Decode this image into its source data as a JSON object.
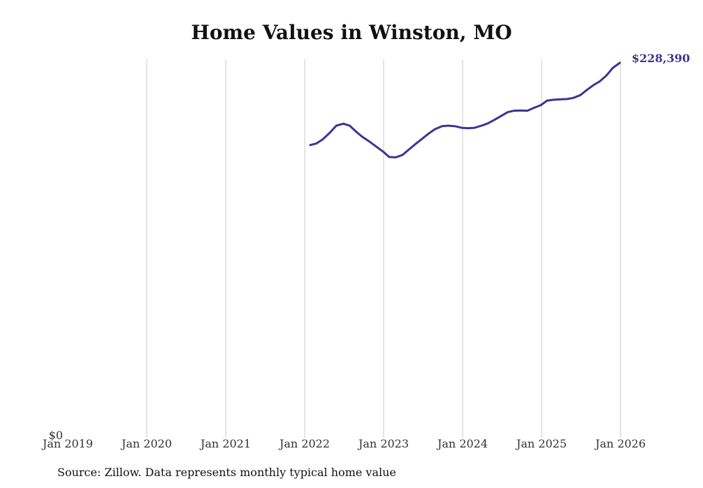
{
  "chart_data": {
    "type": "line",
    "title": "Home Values in Winston, MO",
    "xlabel": "",
    "ylabel": "",
    "x_tick_labels": [
      "Jan 2019",
      "Jan 2020",
      "Jan 2021",
      "Jan 2022",
      "Jan 2023",
      "Jan 2024",
      "Jan 2025",
      "Jan 2026"
    ],
    "y_tick_labels": [
      "$0"
    ],
    "xlim": [
      2019.0,
      2026.0
    ],
    "ylim": [
      0,
      228390
    ],
    "grid": "vertical",
    "series": [
      {
        "name": "Typical home value",
        "color": "#3b3592",
        "x": [
          2022.07,
          2022.15,
          2022.23,
          2022.32,
          2022.4,
          2022.49,
          2022.57,
          2022.65,
          2022.73,
          2022.82,
          2022.9,
          2022.99,
          2023.07,
          2023.15,
          2023.24,
          2023.32,
          2023.4,
          2023.49,
          2023.57,
          2023.65,
          2023.74,
          2023.82,
          2023.9,
          2023.99,
          2024.07,
          2024.15,
          2024.24,
          2024.32,
          2024.4,
          2024.49,
          2024.57,
          2024.65,
          2024.74,
          2024.82,
          2024.9,
          2024.99,
          2025.07,
          2025.15,
          2025.24,
          2025.32,
          2025.4,
          2025.49,
          2025.57,
          2025.65,
          2025.74,
          2025.82,
          2025.9,
          2025.99
        ],
        "values": [
          178300,
          179300,
          181800,
          185900,
          190100,
          191300,
          190100,
          186500,
          183300,
          180400,
          177600,
          174400,
          171000,
          170800,
          172300,
          175600,
          178800,
          182200,
          185300,
          188000,
          189800,
          190100,
          189800,
          188800,
          188600,
          188800,
          190100,
          191500,
          193600,
          196100,
          198300,
          199200,
          199400,
          199200,
          200900,
          202600,
          205400,
          205900,
          206200,
          206300,
          207000,
          208700,
          211700,
          214600,
          217200,
          220600,
          225200,
          228390
        ]
      }
    ],
    "end_label": "$228,390"
  },
  "source_note": "Source: Zillow. Data represents monthly typical home value"
}
